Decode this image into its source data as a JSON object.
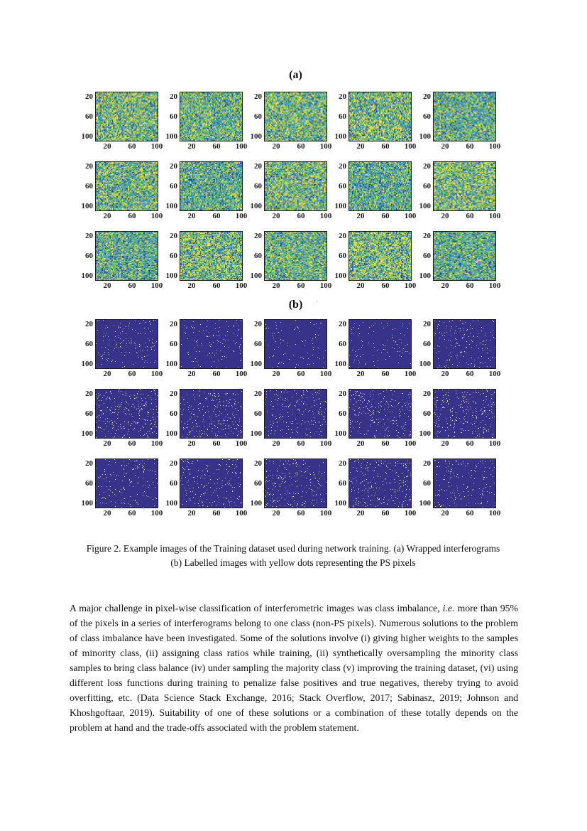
{
  "figure": {
    "label_a": "(a)",
    "label_b": "(b)",
    "stray_mark": "'",
    "grid_rows": 3,
    "grid_cols": 5,
    "y_ticks": [
      "20",
      "60",
      "100"
    ],
    "x_ticks": [
      "20",
      "60",
      "100"
    ],
    "axis_max": 100,
    "colors": {
      "interferogram_palette": [
        "#27427e",
        "#2f62b5",
        "#4b93d0",
        "#3fa9b8",
        "#3db392",
        "#6fbf63",
        "#9cc94e",
        "#d9cf45",
        "#f2e33e"
      ],
      "label_image_bg": "#37338b",
      "ps_dot_colors": [
        "#d8d8c0",
        "#e9e9d9",
        "#c6c6a6",
        "#f0eabc"
      ]
    }
  },
  "caption": {
    "text": "Figure 2. Example images of the Training dataset used during network training. (a) Wrapped interferograms (b) Labelled images with yellow dots representing the PS pixels"
  },
  "paragraph": {
    "part1": "A major challenge in pixel-wise classification of interferometric images was class imbalance, ",
    "italic": "i.e.",
    "part2": " more than 95% of the pixels in a series of interferograms belong to one class (non-PS pixels). Numerous solutions to the problem of class imbalance have been investigated. Some of the solutions involve (i) giving higher weights to the samples of minority class, (ii) assigning class ratios while training, (ii) synthetically oversampling the minority class samples to bring class balance (iv) under sampling the majority class (v) improving the training dataset, (vi) using different loss functions during training to penalize false positives and true negatives, thereby trying to avoid overfitting, etc. (Data Science Stack Exchange, 2016; Stack Overflow, 2017; Sabinasz, 2019; Johnson and Khoshgoftaar, 2019). Suitability of one of these solutions or a combination of these totally depends on the problem at hand and the trade-offs associated with the problem statement."
  }
}
